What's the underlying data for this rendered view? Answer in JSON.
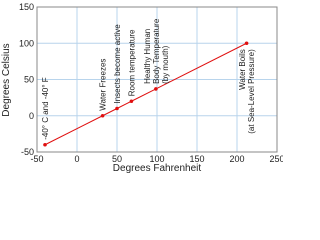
{
  "chart_data": {
    "type": "line",
    "x_label": "Degrees Fahrenheit",
    "y_label": "Degrees Celsius",
    "x": [
      -40,
      32,
      50,
      68,
      98.6,
      212
    ],
    "series": [
      {
        "color": "#e01010",
        "values": [
          -40,
          0,
          10,
          20,
          37,
          100
        ]
      }
    ],
    "annotations": [
      [
        "-40° C and -40° F"
      ],
      [
        "Water Freezes"
      ],
      [
        "Insects become active"
      ],
      [
        "Room temperature"
      ],
      [
        "Healthy Human",
        "Body Temperature",
        "(by mouth)"
      ],
      [
        "Water Boils",
        "(at Sea-Level Pressure)"
      ]
    ],
    "xlim": [
      -50,
      250
    ],
    "xticks": [
      -50,
      0,
      50,
      100,
      150,
      200,
      250
    ],
    "ylim": [
      -50,
      150
    ],
    "yticks": [
      -50,
      0,
      50,
      100,
      150
    ],
    "grid": true
  }
}
